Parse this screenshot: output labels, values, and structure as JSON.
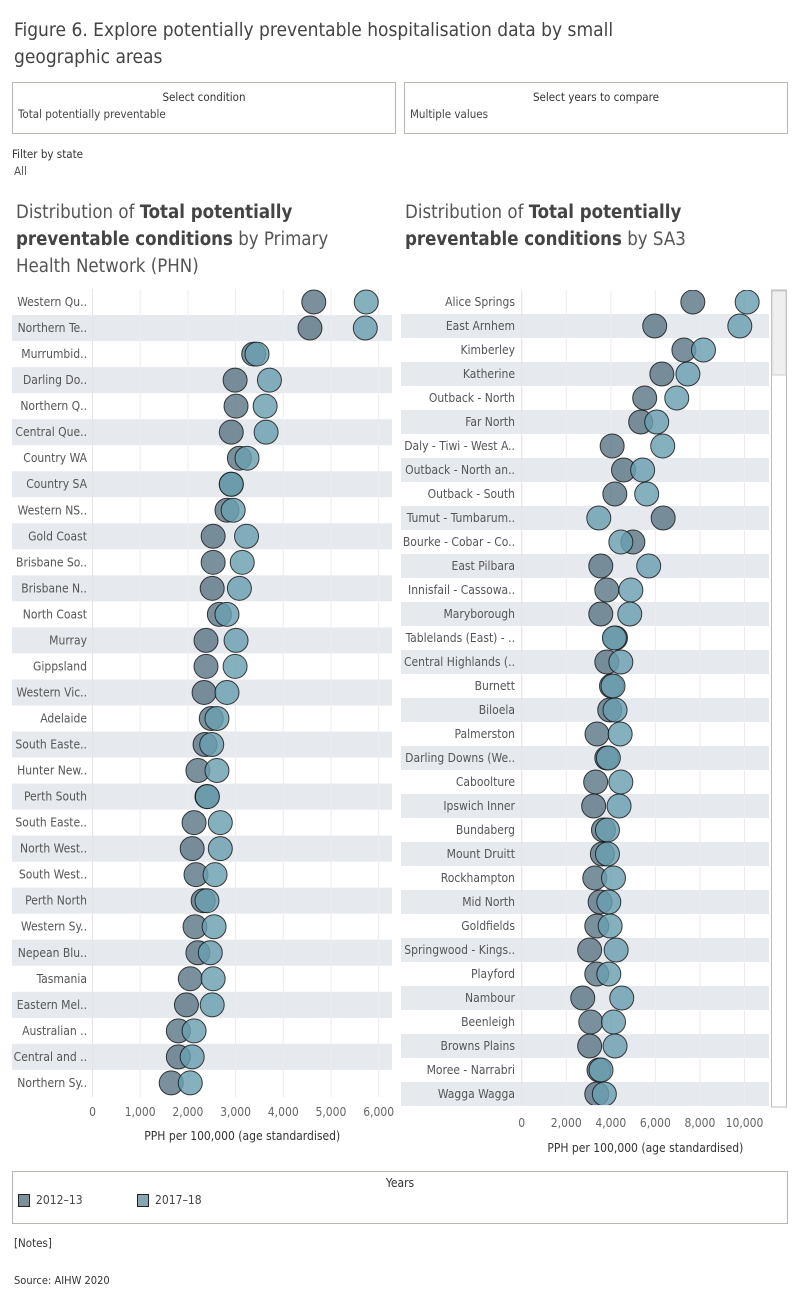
{
  "title": "Figure 6. Explore potentially preventable hospitalisation data by small geographic areas",
  "controls": {
    "condition": {
      "label": "Select condition",
      "value": "Total potentially preventable"
    },
    "years": {
      "label": "Select years to compare",
      "value": "Multiple values"
    },
    "state_filter": {
      "label": "Filter by state",
      "value": "All"
    }
  },
  "colors": {
    "2012-13": "#5d7886",
    "2017-18": "#6a9fb0",
    "band": "#e6eaee",
    "grid": "#ececec"
  },
  "legend": {
    "title": "Years",
    "items": [
      "2012–13",
      "2017–18"
    ]
  },
  "notes_link": "[Notes]",
  "source": "Source: AIHW 2020",
  "chart_data": [
    {
      "type": "scatter",
      "title_parts": [
        "Distribution of ",
        "Total potentially preventable conditions",
        " by Primary Health Network (PHN)"
      ],
      "xlabel": "PPH per 100,000 (age standardised)",
      "xlim": [
        0,
        6280
      ],
      "xticks": [
        0,
        1000,
        2000,
        3000,
        4000,
        5000,
        6000
      ],
      "xtick_labels": [
        "0",
        "1,000",
        "2,000",
        "3,000",
        "4,000",
        "5,000",
        "6,000"
      ],
      "grid": true,
      "categories": [
        "Western Qu..",
        "Northern Te..",
        "Murrumbid..",
        "Darling Do..",
        "Northern Q..",
        "Central Que..",
        "Country WA",
        "Country SA",
        "Western NS..",
        "Gold Coast",
        "Brisbane So..",
        "Brisbane N..",
        "North Coast",
        "Murray",
        "Gippsland",
        "Western Vic..",
        "Adelaide",
        "South Easte..",
        "Hunter New..",
        "Perth South",
        "South Easte..",
        "North West..",
        "South West..",
        "Perth North",
        "Western Sy..",
        "Nepean Blu..",
        "Tasmania",
        "Eastern Mel..",
        "Australian ..",
        "Central and ..",
        "Northern Sy.."
      ],
      "series": [
        {
          "name": "2012–13",
          "values": [
            4640,
            4560,
            3380,
            2990,
            3010,
            2910,
            3080,
            2910,
            2820,
            2530,
            2530,
            2510,
            2660,
            2380,
            2380,
            2340,
            2490,
            2360,
            2210,
            2400,
            2130,
            2090,
            2170,
            2320,
            2150,
            2210,
            2050,
            1970,
            1800,
            1800,
            1650
          ]
        },
        {
          "name": "2017–18",
          "values": [
            5740,
            5720,
            3450,
            3710,
            3620,
            3640,
            3240,
            2910,
            2950,
            3230,
            3140,
            3080,
            2820,
            3010,
            2990,
            2820,
            2610,
            2500,
            2610,
            2410,
            2680,
            2680,
            2570,
            2400,
            2550,
            2470,
            2530,
            2510,
            2130,
            2090,
            2050
          ]
        }
      ]
    },
    {
      "type": "scatter",
      "title_parts": [
        "Distribution of ",
        "Total potentially preventable conditions",
        " by SA3"
      ],
      "xlabel": "PPH per 100,000 (age standardised)",
      "xlim": [
        0,
        11100
      ],
      "xticks": [
        0,
        2000,
        4000,
        6000,
        8000,
        10000
      ],
      "xtick_labels": [
        "0",
        "2,000",
        "4,000",
        "6,000",
        "8,000",
        "10,000"
      ],
      "grid": true,
      "scrollable": true,
      "categories": [
        "Alice Springs",
        "East Arnhem",
        "Kimberley",
        "Katherine",
        "Outback - North",
        "Far North",
        "Daly - Tiwi - West A..",
        "Outback - North an..",
        "Outback - South",
        "Tumut - Tumbarum..",
        "Bourke - Cobar - Co..",
        "East Pilbara",
        "Innisfail - Cassowa..",
        "Maryborough",
        "Tablelands (East) - ..",
        "Central Highlands (..",
        "Burnett",
        "Biloela",
        "Palmerston",
        "Darling Downs (We..",
        "Caboolture",
        "Ipswich Inner",
        "Bundaberg",
        "Mount Druitt",
        "Rockhampton",
        "Mid North",
        "Goldfields",
        "Springwood - Kings..",
        "Playford",
        "Nambour",
        "Beenleigh",
        "Browns Plains",
        "Moree - Narrabri",
        "Wagga Wagga"
      ],
      "series": [
        {
          "name": "2012–13",
          "values": [
            7680,
            5970,
            7280,
            6290,
            5520,
            5340,
            4060,
            4570,
            4180,
            6350,
            4990,
            3550,
            3820,
            3550,
            4210,
            3820,
            4030,
            3950,
            3380,
            3820,
            3320,
            3230,
            3670,
            3620,
            3280,
            3520,
            3370,
            3050,
            3370,
            2740,
            3100,
            3050,
            3470,
            3370
          ]
        },
        {
          "name": "2017–18",
          "values": [
            10120,
            9790,
            8160,
            7460,
            6960,
            6060,
            6330,
            5430,
            5610,
            3460,
            4450,
            5700,
            4900,
            4850,
            4160,
            4450,
            4100,
            4190,
            4420,
            3890,
            4450,
            4370,
            3850,
            3850,
            4120,
            3910,
            3970,
            4240,
            3910,
            4490,
            4120,
            4190,
            3560,
            3710
          ]
        }
      ]
    }
  ]
}
